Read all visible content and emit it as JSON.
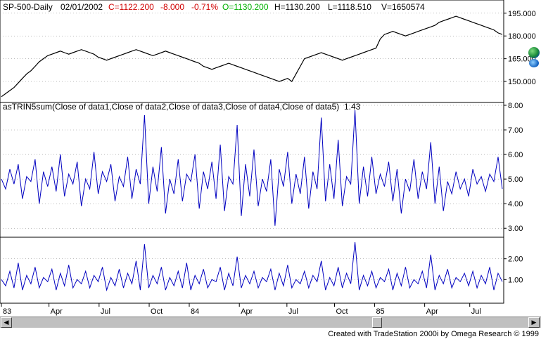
{
  "header": {
    "symbol": "SP-500-Daily",
    "date": "02/01/2002",
    "close": "C=1122.200",
    "change": "-8.000",
    "pct": "-0.71%",
    "open": "O=1130.200",
    "high": "H=1130.200",
    "low": "L=1118.510",
    "volume": "V=1650574"
  },
  "indicator": {
    "title": "asTRIN5sum(Close of data1,Close of data2,Close of data3,Close of data4,Close of data5)",
    "value": "1.43"
  },
  "colors": {
    "price": "#000000",
    "indicator": "#0000c0",
    "close": "#d00000",
    "open": "#00b000",
    "grid": "#7f7f7f"
  },
  "footer": {
    "credit": "Created with TradeStation 2000i by Omega Research © 1999"
  },
  "icons": {
    "globe": "globe-icon",
    "scroll_left": "arrow-left-icon",
    "scroll_right": "arrow-right-icon"
  },
  "chart_data": [
    {
      "type": "line",
      "pane": "price",
      "y_ticks": [
        "195.000",
        "180.000",
        "165.000",
        "150.000"
      ],
      "y_tick_values": [
        195,
        180,
        165,
        150
      ],
      "ylim": [
        138,
        200
      ],
      "series": [
        {
          "values": [
            140,
            142,
            144,
            146,
            149,
            152,
            155,
            157,
            160,
            163,
            165,
            167,
            168,
            169,
            170,
            169,
            168,
            169,
            170,
            171,
            170,
            169,
            168,
            166,
            165,
            164,
            165,
            166,
            167,
            168,
            169,
            170,
            171,
            170,
            169,
            168,
            167,
            168,
            169,
            170,
            169,
            168,
            167,
            166,
            165,
            164,
            163,
            162,
            160,
            159,
            158,
            159,
            160,
            161,
            162,
            161,
            160,
            159,
            158,
            157,
            156,
            155,
            154,
            153,
            152,
            151,
            150,
            151,
            152,
            150,
            155,
            160,
            165,
            166,
            167,
            168,
            169,
            168,
            167,
            166,
            165,
            164,
            165,
            166,
            167,
            168,
            169,
            170,
            171,
            172,
            178,
            181,
            182,
            183,
            182,
            181,
            180,
            181,
            182,
            183,
            184,
            185,
            186,
            187,
            189,
            190,
            191,
            192,
            193,
            192,
            191,
            190,
            189,
            188,
            187,
            186,
            185,
            184,
            182,
            181
          ]
        }
      ]
    },
    {
      "type": "line",
      "pane": "indicator",
      "y_ticks": [
        "8.00",
        "7.00",
        "6.00",
        "5.00",
        "4.00",
        "3.00"
      ],
      "y_tick_values": [
        8,
        7,
        6,
        5,
        4,
        3
      ],
      "ylim": [
        2.75,
        8.0
      ],
      "series": [
        {
          "values": [
            5.0,
            4.6,
            5.4,
            4.8,
            5.6,
            4.2,
            5.1,
            4.9,
            5.8,
            4.0,
            5.3,
            4.7,
            5.5,
            4.5,
            6.0,
            4.3,
            5.2,
            4.8,
            5.7,
            3.9,
            5.0,
            4.6,
            6.1,
            4.4,
            5.3,
            4.9,
            5.6,
            4.1,
            5.1,
            4.7,
            5.9,
            4.2,
            5.4,
            4.8,
            7.6,
            4.0,
            5.5,
            4.5,
            6.3,
            3.6,
            5.0,
            4.4,
            5.8,
            4.1,
            5.2,
            4.9,
            6.0,
            3.8,
            5.3,
            4.6,
            5.7,
            4.2,
            6.4,
            3.7,
            5.1,
            4.8,
            7.2,
            3.5,
            5.6,
            4.3,
            6.2,
            3.9,
            5.0,
            4.5,
            5.8,
            3.1,
            5.4,
            4.7,
            6.1,
            4.0,
            5.2,
            4.4,
            5.9,
            3.8,
            5.3,
            4.6,
            7.5,
            4.1,
            5.6,
            4.2,
            6.6,
            3.9,
            5.1,
            4.8,
            7.8,
            4.0,
            5.5,
            4.3,
            5.9,
            4.4,
            5.2,
            4.7,
            5.7,
            4.1,
            5.4,
            3.6,
            5.0,
            4.5,
            5.8,
            4.2,
            5.3,
            4.6,
            6.5,
            4.0,
            5.5,
            3.7,
            4.9,
            4.4,
            5.3,
            4.6,
            5.0,
            4.3,
            5.4,
            4.8,
            5.1,
            4.5,
            5.2,
            4.9,
            5.9,
            4.6
          ]
        }
      ]
    },
    {
      "type": "line",
      "pane": "trin",
      "y_ticks": [
        "2.00",
        "1.00"
      ],
      "y_tick_values": [
        2,
        1
      ],
      "ylim": [
        0,
        2.9
      ],
      "series": [
        {
          "values": [
            1.0,
            0.7,
            1.4,
            0.6,
            1.8,
            0.5,
            1.2,
            0.8,
            1.6,
            0.6,
            1.1,
            0.9,
            1.5,
            0.5,
            1.3,
            0.7,
            1.7,
            0.6,
            1.0,
            0.8,
            1.4,
            0.6,
            1.2,
            0.9,
            1.6,
            0.5,
            1.1,
            0.7,
            1.5,
            0.6,
            1.3,
            0.8,
            1.9,
            0.5,
            2.7,
            0.6,
            1.2,
            0.8,
            1.6,
            0.5,
            1.1,
            0.7,
            1.4,
            0.6,
            1.8,
            0.5,
            1.2,
            0.8,
            1.5,
            0.6,
            1.0,
            0.9,
            1.6,
            0.5,
            1.3,
            0.7,
            2.1,
            0.6,
            1.2,
            0.8,
            1.4,
            0.6,
            1.1,
            0.9,
            1.5,
            0.5,
            1.3,
            0.7,
            1.7,
            0.6,
            1.0,
            0.8,
            1.4,
            0.6,
            1.2,
            0.9,
            1.9,
            0.5,
            1.1,
            0.7,
            1.6,
            0.6,
            1.3,
            0.8,
            2.8,
            0.5,
            1.2,
            0.7,
            1.4,
            0.6,
            1.1,
            0.9,
            1.5,
            0.5,
            1.3,
            0.7,
            1.6,
            0.6,
            1.0,
            0.8,
            1.4,
            0.6,
            2.2,
            0.5,
            1.2,
            0.8,
            1.5,
            0.6,
            1.1,
            0.9,
            1.3,
            0.7,
            1.4,
            0.6,
            1.2,
            0.8,
            1.6,
            0.5,
            1.3,
            0.9
          ]
        }
      ]
    },
    {
      "type": "axis",
      "pane": "time",
      "x_ticks": [
        "83",
        "Apr",
        "Jul",
        "Oct",
        "84",
        "Apr",
        "Jul",
        "Oct",
        "85",
        "Apr",
        "Jul"
      ],
      "x_tick_values": [
        0,
        0.095,
        0.195,
        0.295,
        0.375,
        0.475,
        0.57,
        0.665,
        0.745,
        0.845,
        0.935
      ]
    }
  ]
}
